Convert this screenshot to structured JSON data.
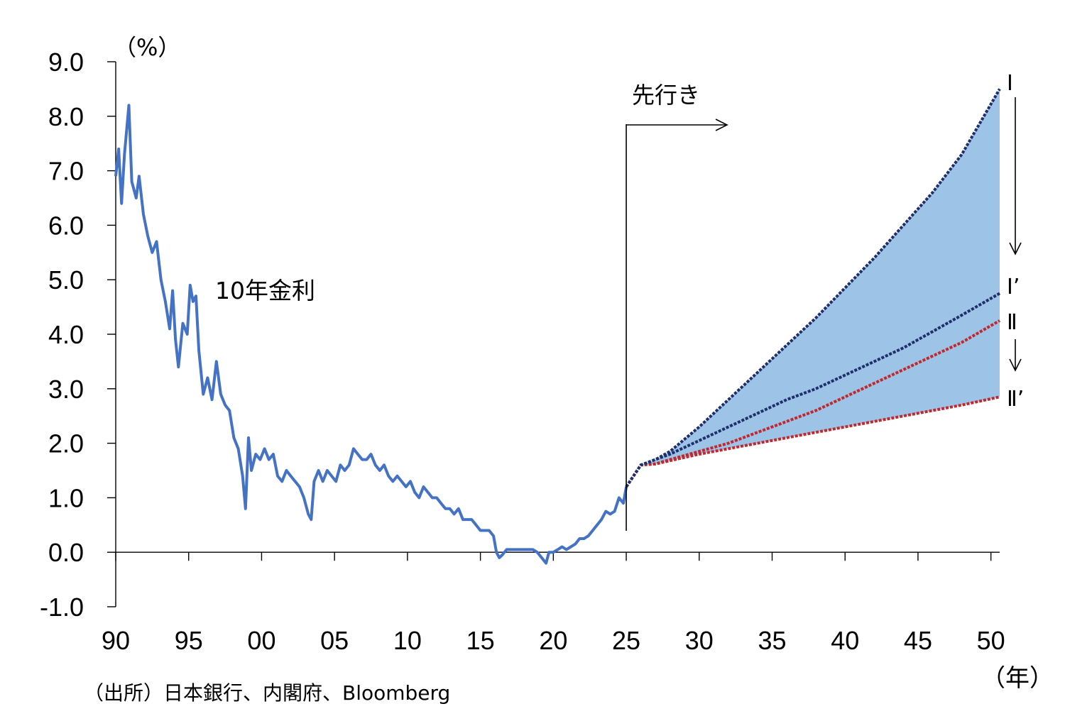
{
  "chart_data": {
    "type": "line",
    "title": "",
    "ylabel": "（%）",
    "xlabel": "（年）",
    "ylim": [
      -1.0,
      9.0
    ],
    "xlim": [
      1990,
      2050.6
    ],
    "y_ticks": [
      "9.0",
      "8.0",
      "7.0",
      "6.0",
      "5.0",
      "4.0",
      "3.0",
      "2.0",
      "1.0",
      "0.0",
      "-1.0"
    ],
    "y_tick_values": [
      9,
      8,
      7,
      6,
      5,
      4,
      3,
      2,
      1,
      0,
      -1
    ],
    "x_ticks": [
      "90",
      "95",
      "00",
      "05",
      "10",
      "15",
      "20",
      "25",
      "30",
      "35",
      "40",
      "45",
      "50"
    ],
    "x_tick_values": [
      1990,
      1995,
      2000,
      2005,
      2010,
      2015,
      2020,
      2025,
      2030,
      2035,
      2040,
      2045,
      2050
    ],
    "grid": false,
    "forecast_start": 2025,
    "colors": {
      "history": "#4472C4",
      "scenario_I": "#1F2F6B",
      "scenario_II": "#C0282D",
      "band": "#9DC3E6",
      "axis": "#000000"
    },
    "series": [
      {
        "name": "10年金利",
        "style": "solid",
        "x": [
          1990.0,
          1990.2,
          1990.4,
          1990.6,
          1990.9,
          1991.1,
          1991.4,
          1991.6,
          1991.9,
          1992.2,
          1992.5,
          1992.8,
          1993.1,
          1993.4,
          1993.7,
          1993.9,
          1994.1,
          1994.3,
          1994.6,
          1994.9,
          1995.1,
          1995.3,
          1995.5,
          1995.7,
          1996.0,
          1996.3,
          1996.6,
          1996.9,
          1997.2,
          1997.5,
          1997.8,
          1998.1,
          1998.4,
          1998.7,
          1998.9,
          1999.1,
          1999.3,
          1999.6,
          1999.9,
          2000.2,
          2000.5,
          2000.8,
          2001.1,
          2001.4,
          2001.7,
          2002.0,
          2002.3,
          2002.6,
          2002.9,
          2003.2,
          2003.4,
          2003.6,
          2003.9,
          2004.2,
          2004.5,
          2004.8,
          2005.1,
          2005.4,
          2005.7,
          2006.0,
          2006.3,
          2006.6,
          2006.9,
          2007.2,
          2007.5,
          2007.8,
          2008.1,
          2008.4,
          2008.7,
          2009.0,
          2009.3,
          2009.6,
          2009.9,
          2010.2,
          2010.5,
          2010.8,
          2011.1,
          2011.4,
          2011.7,
          2012.0,
          2012.3,
          2012.6,
          2012.9,
          2013.2,
          2013.5,
          2013.8,
          2014.1,
          2014.4,
          2014.7,
          2015.0,
          2015.3,
          2015.6,
          2015.9,
          2016.1,
          2016.3,
          2016.5,
          2016.8,
          2017.1,
          2017.4,
          2017.7,
          2018.0,
          2018.3,
          2018.6,
          2018.9,
          2019.2,
          2019.5,
          2019.7,
          2020.0,
          2020.3,
          2020.6,
          2020.9,
          2021.2,
          2021.5,
          2021.8,
          2022.1,
          2022.4,
          2022.7,
          2023.0,
          2023.3,
          2023.6,
          2023.9,
          2024.2,
          2024.5,
          2024.8,
          2025.0
        ],
        "y": [
          6.9,
          7.4,
          6.4,
          7.3,
          8.2,
          6.8,
          6.5,
          6.9,
          6.2,
          5.8,
          5.5,
          5.7,
          5.0,
          4.6,
          4.1,
          4.8,
          3.9,
          3.4,
          4.2,
          4.0,
          4.9,
          4.6,
          4.7,
          3.7,
          2.9,
          3.2,
          2.8,
          3.5,
          2.9,
          2.7,
          2.6,
          2.1,
          1.9,
          1.4,
          0.8,
          2.1,
          1.5,
          1.8,
          1.7,
          1.9,
          1.7,
          1.8,
          1.4,
          1.3,
          1.5,
          1.4,
          1.3,
          1.2,
          1.0,
          0.7,
          0.6,
          1.3,
          1.5,
          1.3,
          1.5,
          1.4,
          1.3,
          1.6,
          1.5,
          1.6,
          1.9,
          1.8,
          1.7,
          1.7,
          1.8,
          1.6,
          1.5,
          1.6,
          1.4,
          1.3,
          1.4,
          1.3,
          1.2,
          1.3,
          1.1,
          1.0,
          1.2,
          1.1,
          1.0,
          1.0,
          0.9,
          0.8,
          0.8,
          0.7,
          0.8,
          0.6,
          0.6,
          0.6,
          0.5,
          0.4,
          0.4,
          0.4,
          0.3,
          0.0,
          -0.1,
          -0.05,
          0.05,
          0.05,
          0.05,
          0.05,
          0.05,
          0.05,
          0.05,
          0.0,
          -0.1,
          -0.2,
          0.0,
          0.0,
          0.05,
          0.1,
          0.05,
          0.1,
          0.15,
          0.25,
          0.25,
          0.3,
          0.4,
          0.5,
          0.6,
          0.75,
          0.7,
          0.75,
          1.0,
          0.9,
          1.2
        ]
      },
      {
        "name": "Ⅰ",
        "style": "dotted",
        "x": [
          2025.0,
          2026.0,
          2027.0,
          2028.0,
          2030.0,
          2032.0,
          2034.0,
          2036.0,
          2038.0,
          2040.0,
          2042.0,
          2044.0,
          2046.0,
          2048.0,
          2050.6
        ],
        "y": [
          1.2,
          1.6,
          1.7,
          1.85,
          2.3,
          2.8,
          3.3,
          3.8,
          4.3,
          4.85,
          5.4,
          6.0,
          6.6,
          7.3,
          8.5
        ]
      },
      {
        "name": "Ⅰ’",
        "style": "dotted",
        "x": [
          2025.0,
          2026.0,
          2027.0,
          2028.0,
          2030.0,
          2032.0,
          2034.0,
          2036.0,
          2038.0,
          2040.0,
          2042.0,
          2044.0,
          2046.0,
          2048.0,
          2050.6
        ],
        "y": [
          1.2,
          1.6,
          1.7,
          1.8,
          2.05,
          2.3,
          2.55,
          2.8,
          3.0,
          3.25,
          3.5,
          3.75,
          4.05,
          4.35,
          4.75
        ]
      },
      {
        "name": "Ⅱ",
        "style": "dotted",
        "x": [
          2025.0,
          2026.0,
          2027.0,
          2028.0,
          2030.0,
          2032.0,
          2034.0,
          2036.0,
          2038.0,
          2040.0,
          2042.0,
          2044.0,
          2046.0,
          2048.0,
          2050.6
        ],
        "y": [
          1.2,
          1.6,
          1.62,
          1.7,
          1.85,
          2.0,
          2.2,
          2.4,
          2.6,
          2.85,
          3.1,
          3.35,
          3.6,
          3.85,
          4.25
        ]
      },
      {
        "name": "Ⅱ’",
        "style": "dotted",
        "x": [
          2025.0,
          2026.0,
          2027.0,
          2028.0,
          2030.0,
          2032.0,
          2034.0,
          2036.0,
          2038.0,
          2040.0,
          2042.0,
          2044.0,
          2046.0,
          2048.0,
          2050.6
        ],
        "y": [
          1.2,
          1.6,
          1.62,
          1.68,
          1.8,
          1.9,
          2.0,
          2.1,
          2.2,
          2.3,
          2.4,
          2.5,
          2.6,
          2.7,
          2.85
        ]
      }
    ],
    "annotations": {
      "series_label": "10年金利",
      "forecast_label": "先行き",
      "scenario_I": "Ⅰ",
      "scenario_I_prime": "Ⅰ’",
      "scenario_II": "Ⅱ",
      "scenario_II_prime": "Ⅱ’",
      "source": "（出所）日本銀行、内閣府、Bloomberg"
    }
  }
}
